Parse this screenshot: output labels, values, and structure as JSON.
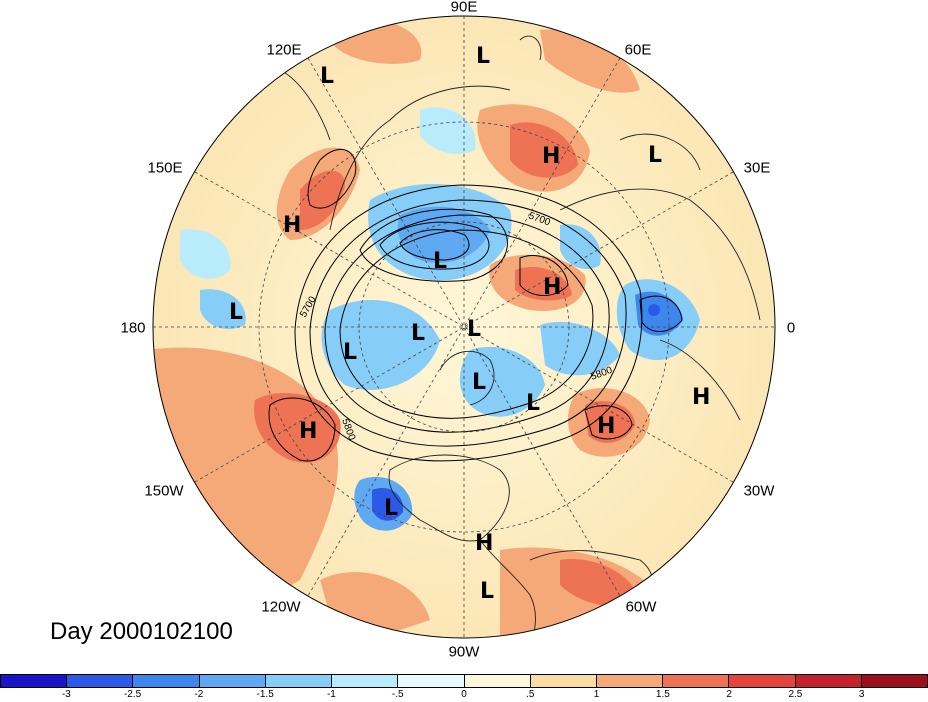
{
  "title": "Day 2000102100",
  "longitude_labels": [
    "90E",
    "60E",
    "30E",
    "0",
    "30W",
    "60W",
    "90W",
    "120W",
    "150W",
    "180",
    "150E",
    "120E"
  ],
  "contour_labels": [
    "5700",
    "5700",
    "5800",
    "5800"
  ],
  "pressure_centers": [
    "L",
    "H",
    "L",
    "H",
    "L",
    "H",
    "L",
    "L",
    "L",
    "L",
    "L",
    "L",
    "L",
    "H",
    "H",
    "H",
    "L",
    "H",
    "L"
  ],
  "colorbar": {
    "ticks": [
      "-3",
      "-2.5",
      "-2",
      "-1.5",
      "-1",
      "-.5",
      "0",
      ".5",
      "1",
      "1.5",
      "2",
      "2.5",
      "3"
    ],
    "colors": [
      "#1a14c8",
      "#2b5ae6",
      "#3d86ee",
      "#5fa9f2",
      "#86cdf7",
      "#b8ebfb",
      "#e6faff",
      "#fff7d9",
      "#fbdda0",
      "#f5a878",
      "#ee7355",
      "#e3443e",
      "#c4222b",
      "#9b0f1e"
    ]
  }
}
